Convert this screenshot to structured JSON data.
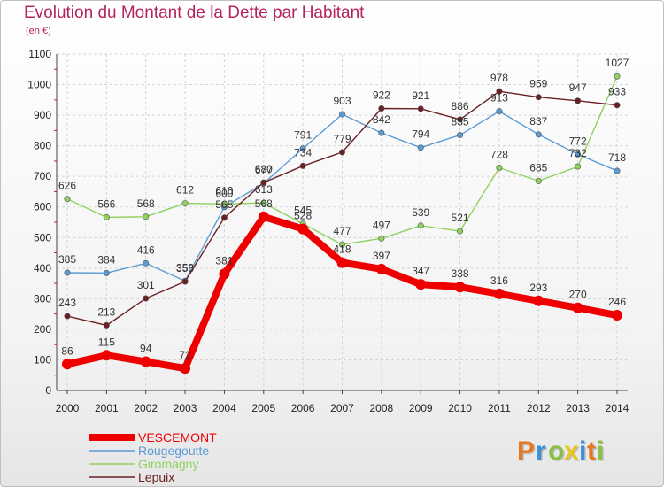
{
  "header": {
    "title": "Evolution du Montant de la Dette par Habitant",
    "unit": "(en €)"
  },
  "logo": {
    "text": "Proxiti",
    "letters": [
      {
        "ch": "P",
        "color": "#e87722"
      },
      {
        "ch": "r",
        "color": "#3a8fd6"
      },
      {
        "ch": "o",
        "color": "#86c144"
      },
      {
        "ch": "x",
        "color": "#e8c51c"
      },
      {
        "ch": "i",
        "color": "#3a8fd6"
      },
      {
        "ch": "t",
        "color": "#e87722"
      },
      {
        "ch": "i",
        "color": "#86c144"
      }
    ]
  },
  "chart_data": {
    "type": "line",
    "title": "Evolution du Montant de la Dette par Habitant",
    "ylabel": "(en €)",
    "xlabel": "",
    "x": [
      2000,
      2001,
      2002,
      2003,
      2004,
      2005,
      2006,
      2007,
      2008,
      2009,
      2010,
      2011,
      2012,
      2013,
      2014
    ],
    "ylim": [
      0,
      1100
    ],
    "yticks": [
      0,
      100,
      200,
      300,
      400,
      500,
      600,
      700,
      800,
      900,
      1000,
      1100
    ],
    "grid": true,
    "legend_position": "bottom-left",
    "series": [
      {
        "name": "Rougegoutte",
        "color": "#5b9bd5",
        "values": [
          385,
          384,
          416,
          358,
          600,
          677,
          791,
          903,
          842,
          794,
          835,
          913,
          837,
          772,
          718
        ]
      },
      {
        "name": "Giromagny",
        "color": "#8fd15e",
        "values": [
          626,
          566,
          568,
          612,
          610,
          613,
          545,
          477,
          497,
          539,
          521,
          728,
          685,
          732,
          1027
        ]
      },
      {
        "name": "Lepuix",
        "color": "#6b1f24",
        "values": [
          243,
          213,
          301,
          356,
          565,
          680,
          734,
          779,
          922,
          921,
          886,
          978,
          959,
          947,
          933
        ]
      },
      {
        "name": "VESCEMONT",
        "color": "#ee0000",
        "values": [
          86,
          115,
          94,
          72,
          381,
          568,
          528,
          418,
          397,
          347,
          338,
          316,
          293,
          270,
          246
        ]
      }
    ],
    "legend_order": [
      "VESCEMONT",
      "Rougegoutte",
      "Giromagny",
      "Lepuix"
    ]
  }
}
